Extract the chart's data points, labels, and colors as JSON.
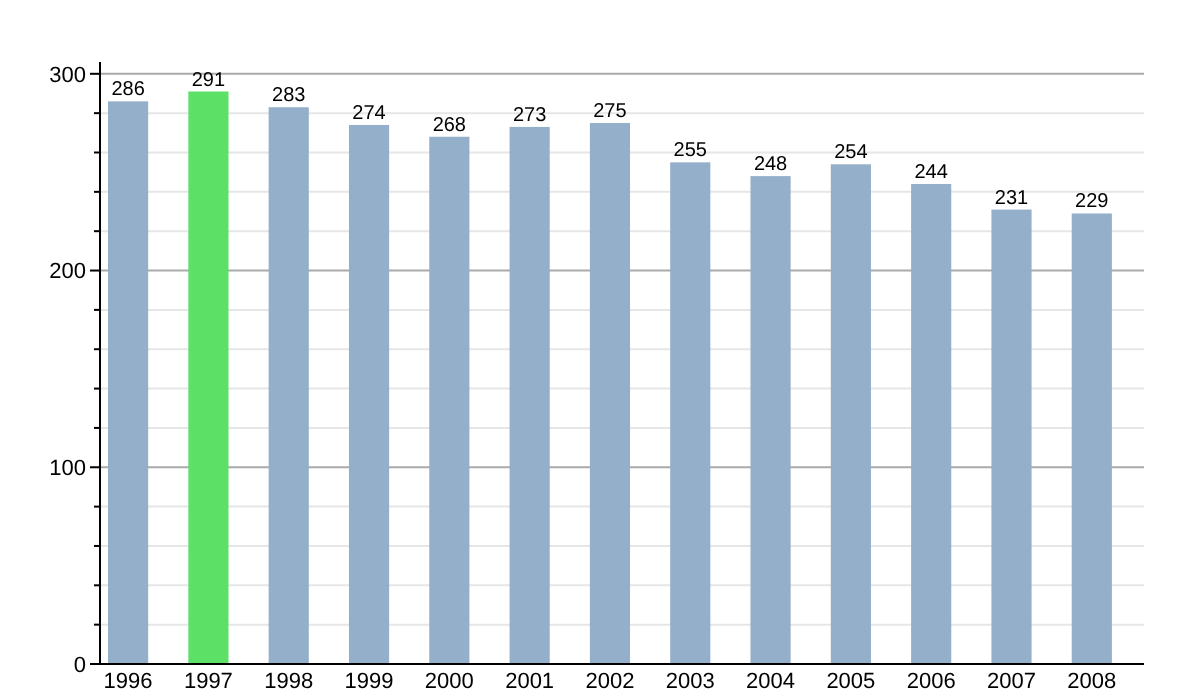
{
  "chart_data": {
    "type": "bar",
    "categories": [
      "1996",
      "1997",
      "1998",
      "1999",
      "2000",
      "2001",
      "2002",
      "2003",
      "2004",
      "2005",
      "2006",
      "2007",
      "2008"
    ],
    "values": [
      286,
      291,
      283,
      274,
      268,
      273,
      275,
      255,
      248,
      254,
      244,
      231,
      229
    ],
    "colors": [
      "#94afc9",
      "#5ce065",
      "#94afc9",
      "#94afc9",
      "#94afc9",
      "#94afc9",
      "#94afc9",
      "#94afc9",
      "#94afc9",
      "#94afc9",
      "#94afc9",
      "#94afc9",
      "#94afc9"
    ],
    "ylim": [
      0,
      306
    ],
    "yticks": [
      0,
      {
        "value": 20,
        "label": null
      },
      {
        "value": 40,
        "label": null
      },
      {
        "value": 60,
        "label": null
      },
      {
        "value": 80,
        "label": null
      },
      100,
      {
        "value": 120,
        "label": null
      },
      {
        "value": 140,
        "label": null
      },
      {
        "value": 160,
        "label": null
      },
      {
        "value": 180,
        "label": null
      },
      200,
      {
        "value": 220,
        "label": null
      },
      {
        "value": 240,
        "label": null
      },
      {
        "value": 260,
        "label": null
      },
      {
        "value": 280,
        "label": null
      },
      300
    ],
    "grid": "y",
    "data_labels": true
  }
}
